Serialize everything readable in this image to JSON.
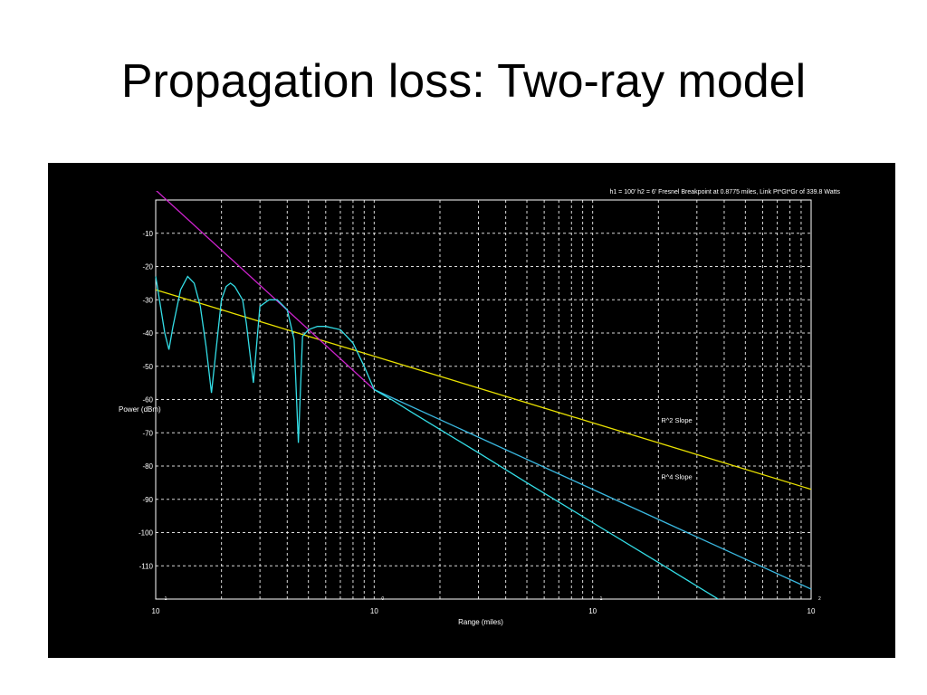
{
  "slide": {
    "title": "Propagation loss: Two-ray model"
  },
  "chart_data": {
    "type": "line",
    "title": "h1 = 100' h2 = 6' Fresnel Breakpoint at 0.8775 miles, Link Pt*Gt*Gr of 339.8 Watts",
    "xlabel": "Range (miles)",
    "ylabel": "Power (dBm)",
    "x_scale": "log",
    "xlim": [
      0.1,
      100
    ],
    "ylim": [
      -120,
      0
    ],
    "x_ticks": [
      {
        "value": 0.1,
        "base": "10",
        "exp": "-1"
      },
      {
        "value": 1,
        "base": "10",
        "exp": "0"
      },
      {
        "value": 10,
        "base": "10",
        "exp": "1"
      },
      {
        "value": 100,
        "base": "10",
        "exp": "2"
      }
    ],
    "y_ticks": [
      -10,
      -20,
      -30,
      -40,
      -50,
      -60,
      -70,
      -80,
      -90,
      -100,
      -110
    ],
    "grid": true,
    "background": "#000000",
    "series": [
      {
        "name": "R^2 Slope",
        "color": "#e8e000",
        "x": [
          0.1,
          100
        ],
        "y": [
          -27,
          -87
        ]
      },
      {
        "name": "R^4 Slope",
        "color": "#3ab8e0",
        "x": [
          1,
          100
        ],
        "y": [
          -57,
          -117
        ]
      },
      {
        "name": "",
        "color": "#cc22cc",
        "x": [
          0.1,
          1
        ],
        "y": [
          3,
          -57
        ]
      },
      {
        "name": "",
        "color": "#33dde6",
        "x": [
          0.1,
          0.11,
          0.115,
          0.12,
          0.13,
          0.14,
          0.15,
          0.16,
          0.17,
          0.18,
          0.2,
          0.21,
          0.22,
          0.23,
          0.25,
          0.26,
          0.28,
          0.3,
          0.33,
          0.36,
          0.4,
          0.43,
          0.45,
          0.47,
          0.5,
          0.55,
          0.6,
          0.7,
          0.8,
          0.9,
          1.0,
          1.2,
          1.5,
          2,
          3,
          5,
          10,
          20,
          50,
          100
        ],
        "y": [
          -23,
          -40,
          -45,
          -38,
          -27,
          -23,
          -25,
          -32,
          -44,
          -58,
          -30,
          -26,
          -25,
          -26,
          -30,
          -37,
          -55,
          -32,
          -30,
          -30,
          -33,
          -42,
          -73,
          -41,
          -39,
          -38,
          -38,
          -39,
          -43,
          -50,
          -57,
          -60,
          -64,
          -69,
          -76,
          -85,
          -97,
          -109,
          -125,
          -137
        ]
      }
    ],
    "annotations": [
      {
        "text": "R^2 Slope",
        "x": 20,
        "y": -67
      },
      {
        "text": "R^4 Slope",
        "x": 20,
        "y": -84
      }
    ]
  }
}
